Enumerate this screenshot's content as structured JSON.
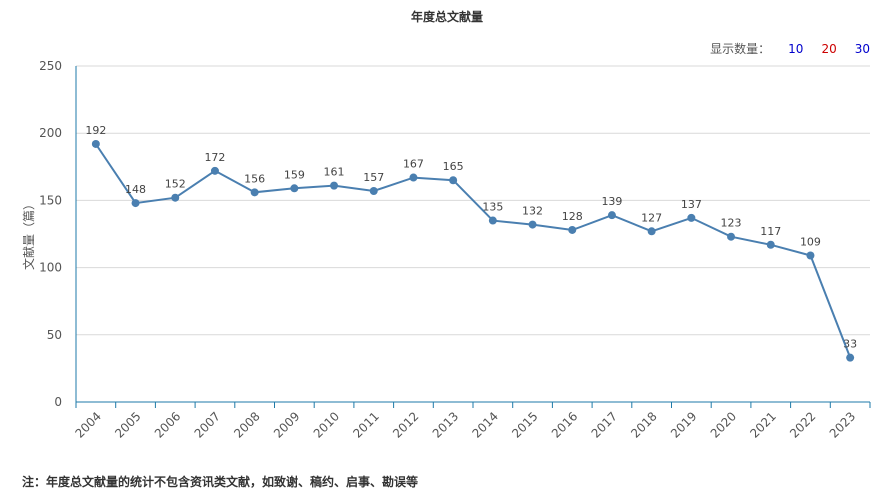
{
  "title": "年度总文献量",
  "count_selector": {
    "label": "显示数量：",
    "options": [
      {
        "label": "10",
        "color": "#0000cc"
      },
      {
        "label": "20",
        "color": "#cc0000"
      },
      {
        "label": "30",
        "color": "#0000cc"
      }
    ]
  },
  "footnote": "注：年度总文献量的统计不包含资讯类文献，如致谢、稿约、启事、勘误等",
  "colors": {
    "line": "#4a7fb0",
    "grid": "#d9d9d9",
    "axis": "#1e7aa8"
  },
  "chart_data": {
    "type": "line",
    "title": "年度总文献量",
    "xlabel": "",
    "ylabel": "文献量（篇）",
    "ylim": [
      0,
      250
    ],
    "yticks": [
      0,
      50,
      100,
      150,
      200,
      250
    ],
    "grid": true,
    "categories": [
      "2004",
      "2005",
      "2006",
      "2007",
      "2008",
      "2009",
      "2010",
      "2011",
      "2012",
      "2013",
      "2014",
      "2015",
      "2016",
      "2017",
      "2018",
      "2019",
      "2020",
      "2021",
      "2022",
      "2023"
    ],
    "series": [
      {
        "values": [
          192,
          148,
          152,
          172,
          156,
          159,
          161,
          157,
          167,
          165,
          135,
          132,
          128,
          139,
          127,
          137,
          123,
          117,
          109,
          33
        ]
      }
    ]
  }
}
